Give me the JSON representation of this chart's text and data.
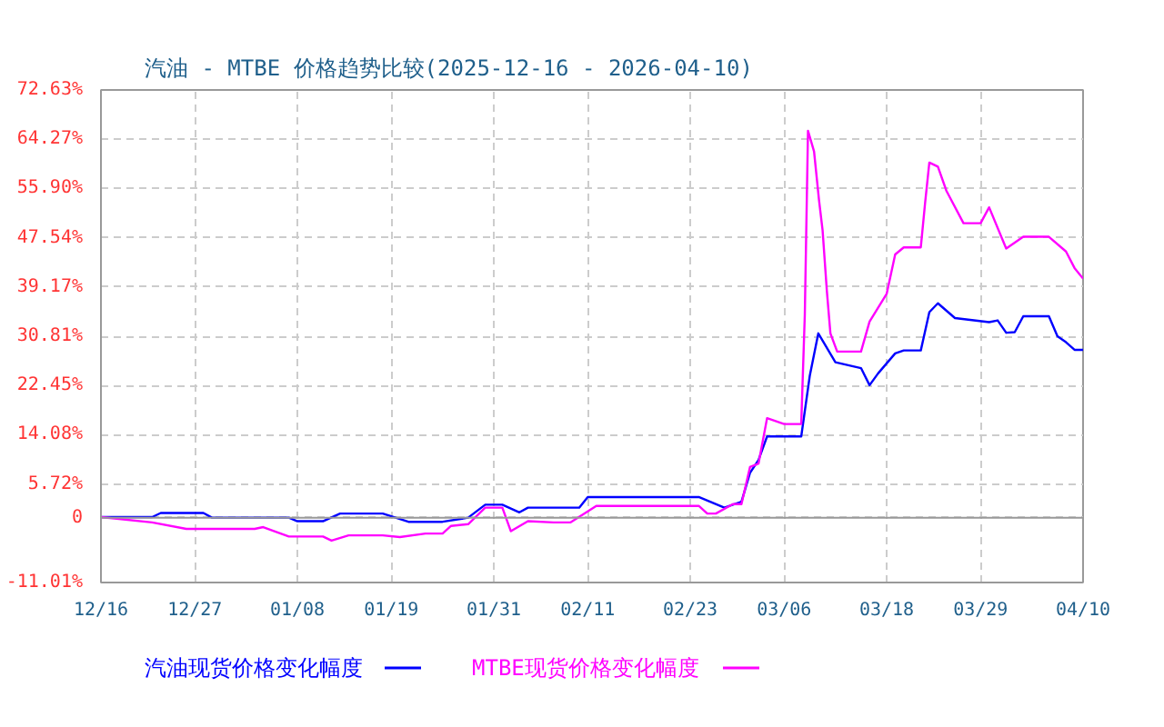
{
  "chart_data": {
    "type": "line",
    "title": "汽油 - MTBE 价格趋势比较(2025-12-16 - 2026-04-10)",
    "xlim": [
      "2025-12-16",
      "2026-04-10"
    ],
    "xticks": [
      {
        "value": "2025-12-16",
        "label": "12/16"
      },
      {
        "value": "2025-12-27",
        "label": "12/27"
      },
      {
        "value": "2026-01-08",
        "label": "01/08"
      },
      {
        "value": "2026-01-19",
        "label": "01/19"
      },
      {
        "value": "2026-01-31",
        "label": "01/31"
      },
      {
        "value": "2026-02-11",
        "label": "02/11"
      },
      {
        "value": "2026-02-23",
        "label": "02/23"
      },
      {
        "value": "2026-03-06",
        "label": "03/06"
      },
      {
        "value": "2026-03-18",
        "label": "03/18"
      },
      {
        "value": "2026-03-29",
        "label": "03/29"
      },
      {
        "value": "2026-04-10",
        "label": "04/10"
      }
    ],
    "ylim": [
      -11.01,
      72.63
    ],
    "yticks": [
      {
        "value": -11.01,
        "label": "-11.01%"
      },
      0,
      {
        "value": 5.72,
        "label": "5.72%"
      },
      {
        "value": 14.08,
        "label": "14.08%"
      },
      {
        "value": 22.45,
        "label": "22.45%"
      },
      {
        "value": 30.81,
        "label": "30.81%"
      },
      {
        "value": 39.17,
        "label": "39.17%"
      },
      {
        "value": 47.54,
        "label": "47.54%"
      },
      {
        "value": 55.9,
        "label": "55.90%"
      },
      {
        "value": 64.27,
        "label": "64.27%"
      },
      {
        "value": 72.63,
        "label": "72.63%"
      }
    ],
    "grid": true,
    "legend": "bottom",
    "line_style": "solid",
    "ref_lines": [
      {
        "axis": "y",
        "value": 0,
        "color": "#999999",
        "line_style": "solid"
      }
    ],
    "series": [
      {
        "name": "汽油现货价格变化幅度",
        "color": "#0000ff",
        "x": [
          "2025-12-16",
          "2025-12-22",
          "2025-12-23",
          "2025-12-28",
          "2025-12-29",
          "2026-01-07",
          "2026-01-08",
          "2026-01-11",
          "2026-01-13",
          "2026-01-18",
          "2026-01-21",
          "2026-01-25",
          "2026-01-28",
          "2026-01-30",
          "2026-02-01",
          "2026-02-03",
          "2026-02-04",
          "2026-02-10",
          "2026-02-11",
          "2026-02-24",
          "2026-02-27",
          "2026-03-01",
          "2026-03-02",
          "2026-03-03",
          "2026-03-04",
          "2026-03-08",
          "2026-03-09",
          "2026-03-10",
          "2026-03-12",
          "2026-03-15",
          "2026-03-16",
          "2026-03-17",
          "2026-03-19",
          "2026-03-20",
          "2026-03-22",
          "2026-03-23",
          "2026-03-24",
          "2026-03-26",
          "2026-03-30",
          "2026-03-31",
          "2026-04-01",
          "2026-04-02",
          "2026-04-03",
          "2026-04-06",
          "2026-04-07",
          "2026-04-08",
          "2026-04-09",
          "2026-04-10"
        ],
        "values": [
          0.1,
          0.1,
          0.8,
          0.8,
          0,
          0,
          -0.6,
          -0.6,
          0.7,
          0.7,
          -0.7,
          -0.7,
          0,
          2.2,
          2.2,
          0.9,
          1.7,
          1.7,
          3.5,
          3.5,
          1.7,
          2.7,
          7.6,
          9.8,
          13.8,
          13.8,
          24.1,
          31.3,
          26.4,
          25.4,
          22.5,
          24.5,
          27.9,
          28.4,
          28.4,
          34.9,
          36.4,
          33.9,
          33.2,
          33.5,
          31.4,
          31.5,
          34.2,
          34.2,
          30.8,
          29.8,
          28.5,
          28.5
        ]
      },
      {
        "name": "MTBE现货价格变化幅度",
        "color": "#ff00ff",
        "x": [
          "2025-12-16",
          "2025-12-22",
          "2025-12-26",
          "2026-01-03",
          "2026-01-04",
          "2026-01-07",
          "2026-01-11",
          "2026-01-12",
          "2026-01-14",
          "2026-01-18",
          "2026-01-20",
          "2026-01-23",
          "2026-01-25",
          "2026-01-26",
          "2026-01-28",
          "2026-01-30",
          "2026-02-01",
          "2026-02-02",
          "2026-02-04",
          "2026-02-07",
          "2026-02-09",
          "2026-02-12",
          "2026-02-24",
          "2026-02-25",
          "2026-02-26",
          "2026-02-28",
          "2026-03-01",
          "2026-03-02",
          "2026-03-03",
          "2026-03-04",
          "2026-03-06",
          "2026-03-08",
          "2026-03-08T10:00",
          "2026-03-08T19:00",
          "2026-03-09T12:00",
          "2026-03-10T02:00",
          "2026-03-10T12:00",
          "2026-03-11",
          "2026-03-11T10:00",
          "2026-03-12T05:00",
          "2026-03-15",
          "2026-03-16",
          "2026-03-18",
          "2026-03-19",
          "2026-03-20",
          "2026-03-22",
          "2026-03-22T12:00",
          "2026-03-23",
          "2026-03-24",
          "2026-03-25",
          "2026-03-27",
          "2026-03-29",
          "2026-03-30",
          "2026-04-01",
          "2026-04-03",
          "2026-04-06",
          "2026-04-08",
          "2026-04-09",
          "2026-04-10"
        ],
        "values": [
          0.1,
          -0.8,
          -1.9,
          -1.9,
          -1.6,
          -3.2,
          -3.2,
          -3.9,
          -3.0,
          -3.0,
          -3.3,
          -2.7,
          -2.7,
          -1.4,
          -1.1,
          1.7,
          1.7,
          -2.3,
          -0.6,
          -0.8,
          -0.8,
          2.0,
          2.0,
          0.7,
          0.7,
          2.3,
          2.3,
          8.6,
          9.2,
          16.9,
          15.9,
          15.9,
          34.4,
          65.7,
          62.2,
          53.9,
          48.8,
          38.5,
          31.3,
          28.2,
          28.2,
          33.3,
          38.0,
          44.7,
          45.9,
          45.9,
          53.4,
          60.3,
          59.6,
          55.5,
          50.0,
          50.0,
          52.7,
          45.7,
          47.7,
          47.7,
          45.2,
          42.4,
          40.6
        ]
      }
    ]
  }
}
